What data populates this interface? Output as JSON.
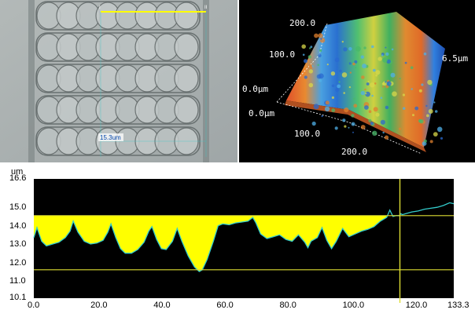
{
  "microscope_panel": {
    "scale_label": "15.3um"
  },
  "surface_3d_panel": {
    "label_x_far": "200.0",
    "label_mid_top": "100.0",
    "label_z_top": "6.5μm",
    "label_left_origin": "0.0μm",
    "label_left_origin2": "0.0μm",
    "label_front_mid": "100.0",
    "label_front_far": "200.0"
  },
  "profile_panel": {
    "y_unit": "um",
    "colors": {
      "background": "#000000",
      "fill": "#ffff00",
      "line": "#33cccc",
      "cursor": "#dddd33"
    }
  },
  "chart_data": {
    "type": "area",
    "title": "",
    "xlabel": "",
    "ylabel": "um",
    "xlim": [
      0,
      133.3
    ],
    "ylim": [
      10.1,
      16.6
    ],
    "xticks": [
      "0.0",
      "20.0",
      "40.0",
      "60.0",
      "80.0",
      "100.0",
      "120.0",
      "133.3"
    ],
    "yticks": [
      "16.6",
      "15.0",
      "14.0",
      "13.0",
      "12.0",
      "11.0",
      "10.1"
    ],
    "fill_top": 14.6,
    "reference_lines": {
      "horizontal_upper": 14.6,
      "horizontal_lower": 11.65,
      "vertical_cursor_x": 116.2
    },
    "series": [
      {
        "x": [
          0,
          1,
          2.5,
          4,
          6,
          8,
          10,
          11.5,
          12.5,
          14,
          16,
          18,
          20,
          22,
          23.5,
          24.5,
          26,
          27.5,
          29,
          31,
          33,
          35,
          36.5,
          37.5,
          39,
          40.5,
          42,
          44,
          45.5,
          47,
          49,
          51,
          52.5,
          53.5,
          55,
          57,
          58.5,
          60,
          62,
          64,
          66,
          68,
          69.5,
          70.5,
          72,
          74,
          76,
          78,
          80,
          82,
          84,
          86,
          87,
          88,
          90,
          91.5,
          93,
          94.5,
          96,
          98,
          100,
          102,
          104,
          106,
          108,
          110,
          112,
          113,
          114,
          115,
          116,
          116.5,
          117,
          118,
          120,
          122,
          124,
          126,
          128,
          130,
          132,
          133.3
        ],
        "y": [
          13.4,
          13.95,
          13.2,
          12.95,
          13.05,
          13.15,
          13.4,
          13.75,
          14.3,
          13.7,
          13.2,
          13.05,
          13.1,
          13.25,
          13.7,
          14.15,
          13.4,
          12.8,
          12.55,
          12.55,
          12.75,
          13.15,
          13.75,
          14.0,
          13.3,
          12.8,
          12.75,
          13.2,
          13.9,
          13.2,
          12.4,
          11.8,
          11.55,
          11.65,
          12.2,
          13.2,
          14.05,
          14.15,
          14.1,
          14.2,
          14.25,
          14.3,
          14.5,
          14.2,
          13.6,
          13.35,
          13.45,
          13.55,
          13.3,
          13.2,
          13.55,
          13.15,
          12.85,
          13.2,
          13.4,
          13.95,
          13.25,
          12.8,
          13.2,
          13.9,
          13.45,
          13.6,
          13.75,
          13.85,
          14.0,
          14.3,
          14.5,
          14.9,
          14.55,
          14.6,
          14.6,
          14.7,
          14.65,
          14.7,
          14.8,
          14.85,
          14.95,
          15.0,
          15.05,
          15.15,
          15.3,
          15.25
        ]
      }
    ]
  }
}
